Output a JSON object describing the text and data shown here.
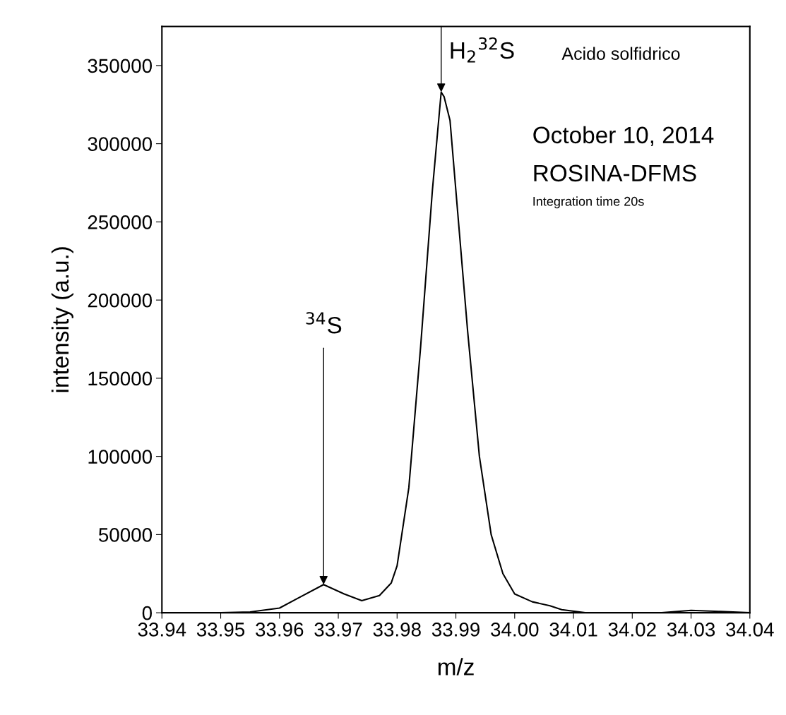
{
  "chart_data": {
    "type": "line",
    "xlabel": "m/z",
    "ylabel": "intensity (a.u.)",
    "x": [
      33.94,
      33.95,
      33.955,
      33.96,
      33.963,
      33.9675,
      33.971,
      33.974,
      33.977,
      33.979,
      33.98,
      33.982,
      33.984,
      33.986,
      33.9875,
      33.988,
      33.989,
      33.99,
      33.992,
      33.994,
      33.996,
      33.998,
      34.0,
      34.003,
      34.006,
      34.008,
      34.012,
      34.02,
      34.025,
      34.03,
      34.035,
      34.04
    ],
    "series": [
      {
        "color": "#000000",
        "values": [
          0,
          0,
          500,
          3000,
          9000,
          18000,
          12000,
          7700,
          11000,
          19000,
          30000,
          80000,
          170000,
          270000,
          333000,
          330000,
          315000,
          270000,
          180000,
          100000,
          50000,
          25000,
          12000,
          7000,
          4500,
          2000,
          0,
          0,
          0,
          1500,
          800,
          0
        ]
      }
    ],
    "xlim": [
      33.94,
      34.04
    ],
    "xticks": [
      {
        "value": 33.94,
        "label": "33.94"
      },
      {
        "value": 33.95,
        "label": "33.95"
      },
      {
        "value": 33.96,
        "label": "33.96"
      },
      {
        "value": 33.97,
        "label": "33.97"
      },
      {
        "value": 33.98,
        "label": "33.98"
      },
      {
        "value": 33.99,
        "label": "33.99"
      },
      {
        "value": 34.0,
        "label": "34.00"
      },
      {
        "value": 34.01,
        "label": "34.01"
      },
      {
        "value": 34.02,
        "label": "34.02"
      },
      {
        "value": 34.03,
        "label": "34.03"
      },
      {
        "value": 34.04,
        "label": "34.04"
      }
    ],
    "ylim": [
      0,
      375000
    ],
    "yticks": [
      0,
      50000,
      100000,
      150000,
      200000,
      250000,
      300000,
      350000
    ],
    "grid": false,
    "legend": false,
    "marker": "none",
    "line_style": "solid",
    "annotations": [
      {
        "text": "$^{34}$S",
        "x": 33.9675,
        "y": 18000
      },
      {
        "text": "H$_{2}$$^{32}$S",
        "x": 33.9875,
        "y": 333000
      },
      "Acido solfidrico",
      "October 10, 2014",
      "ROSINA-DFMS",
      "Integration time 20s"
    ]
  }
}
